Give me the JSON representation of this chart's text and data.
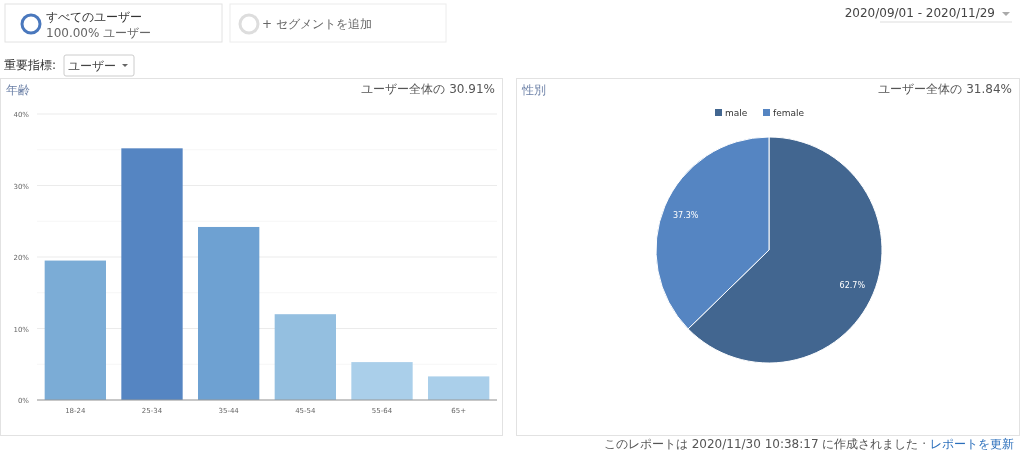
{
  "chart_data": [
    {
      "type": "other",
      "annotations": [
        "すべてのユーザー",
        "100.00% ユーザー",
        "+ セグメントを追加",
        "重要指標:",
        "ユーザー",
        "2020/09/01 - 2020/11/29",
        "このレポートは 2020/11/30 10:38:17 に作成されました ·",
        "レポートを更新"
      ]
    },
    {
      "type": "bar",
      "title": "年齢",
      "annotations": [
        "ユーザー全体の 30.91%"
      ],
      "categories": [
        "18-24",
        "25-34",
        "35-44",
        "45-54",
        "55-64",
        "65+"
      ],
      "values": [
        19.5,
        35.2,
        24.2,
        12.0,
        5.3,
        3.3
      ],
      "colors": [
        "#7bacd6",
        "#5585c2",
        "#6ea1d2",
        "#94bfe0",
        "#aacfea",
        "#aacfea"
      ],
      "ylim": [
        0,
        40
      ],
      "yticks": [
        {
          "value": 0,
          "label": "0%"
        },
        {
          "value": 5,
          "label": null
        },
        {
          "value": 10,
          "label": "10%"
        },
        {
          "value": 15,
          "label": null
        },
        {
          "value": 20,
          "label": "20%"
        },
        {
          "value": 25,
          "label": null
        },
        {
          "value": 30,
          "label": "30%"
        },
        {
          "value": 35,
          "label": null
        },
        {
          "value": 40,
          "label": "40%"
        }
      ],
      "grid": "y"
    },
    {
      "type": "pie",
      "title": "性別",
      "annotations": [
        "ユーザー全体の 31.84%"
      ],
      "categories": [
        "male",
        "female"
      ],
      "values": [
        62.7,
        37.3
      ],
      "colors": [
        "#426690",
        "#5585c2"
      ],
      "value_labels": [
        "62.7%",
        "37.3%"
      ],
      "legend": "top"
    }
  ]
}
